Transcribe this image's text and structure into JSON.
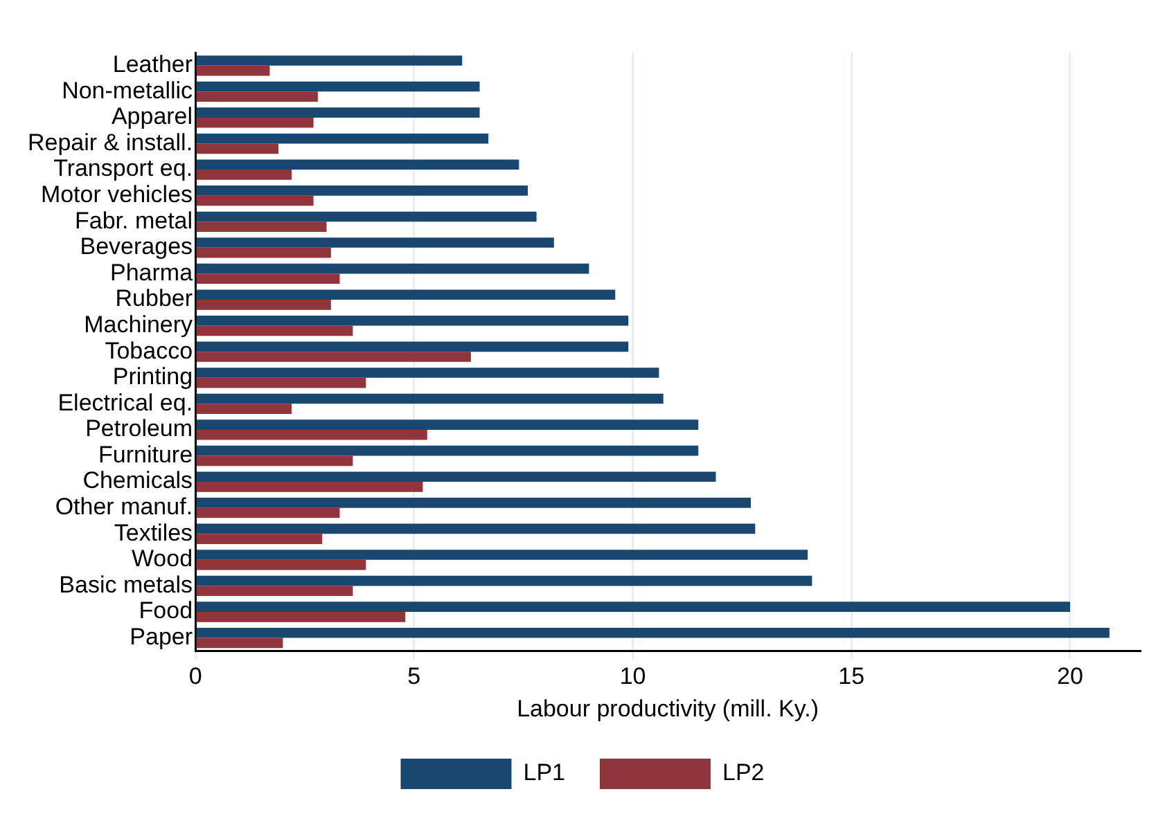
{
  "chart_data": {
    "type": "bar",
    "orientation": "horizontal",
    "xlabel": "Labour productivity (mill. Ky.)",
    "categories": [
      "Leather",
      "Non-metallic",
      "Apparel",
      "Repair & install.",
      "Transport eq.",
      "Motor vehicles",
      "Fabr. metal",
      "Beverages",
      "Pharma",
      "Rubber",
      "Machinery",
      "Tobacco",
      "Printing",
      "Electrical eq.",
      "Petroleum",
      "Furniture",
      "Chemicals",
      "Other manuf.",
      "Textiles",
      "Wood",
      "Basic metals",
      "Food",
      "Paper"
    ],
    "series": [
      {
        "name": "LP1",
        "color": "#1a476f",
        "values": [
          6.1,
          6.5,
          6.5,
          6.7,
          7.4,
          7.6,
          7.8,
          8.2,
          9.0,
          9.6,
          9.9,
          9.9,
          10.6,
          10.7,
          11.5,
          11.5,
          11.9,
          12.7,
          12.8,
          14.0,
          14.1,
          20.0,
          20.9
        ]
      },
      {
        "name": "LP2",
        "color": "#90353b",
        "values": [
          1.7,
          2.8,
          2.7,
          1.9,
          2.2,
          2.7,
          3.0,
          3.1,
          3.3,
          3.1,
          3.6,
          6.3,
          3.9,
          2.2,
          5.3,
          3.6,
          5.2,
          3.3,
          2.9,
          3.9,
          3.6,
          4.8,
          2.0
        ]
      }
    ],
    "xlim": [
      0,
      21.6
    ],
    "xticks": [
      0,
      5,
      10,
      15,
      20
    ],
    "grid": "x",
    "legend": "bottom"
  }
}
